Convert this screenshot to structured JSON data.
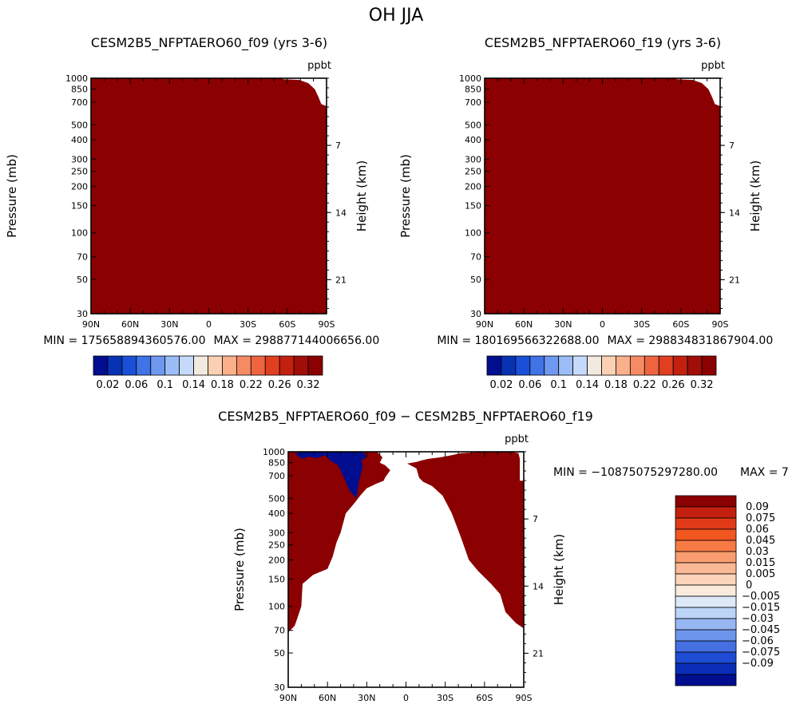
{
  "figure_title": "OH JJA",
  "colors": {
    "positive_fill": "#8b0000",
    "negative_fill": "#000e8f",
    "background": "#ffffff"
  },
  "chart_data": [
    {
      "type": "heatmap",
      "title": "CESM2B5_NFPTAERO60_f09 (yrs 3-6)",
      "units": "ppbt",
      "xlabel": "",
      "ylabel": "Pressure (mb)",
      "ylabel_right": "Height (km)",
      "x_ticks": [
        "90N",
        "60N",
        "30N",
        "0",
        "30S",
        "60S",
        "90S"
      ],
      "y_ticks": [
        "30",
        "50",
        "70",
        "100",
        "150",
        "200",
        "250",
        "300",
        "400",
        "500",
        "700",
        "850",
        "1000"
      ],
      "y_right_ticks": [
        "21",
        "14",
        "7"
      ],
      "min_text": "MIN = 175658894360576.00",
      "max_text": "MAX = 298877144006656.00",
      "colorbar_orientation": "horizontal",
      "colorbar_colors": [
        "#000e8f",
        "#0832b4",
        "#1a50d8",
        "#3f73e6",
        "#6f98f0",
        "#9bbcf7",
        "#c5dafb",
        "#f3eadf",
        "#fbd0b4",
        "#f9b08b",
        "#f58b63",
        "#ee6440",
        "#e04020",
        "#c42010",
        "#a10e08",
        "#8b0000"
      ],
      "colorbar_labels": [
        "0.02",
        "0.06",
        "0.1",
        "0.14",
        "0.18",
        "0.22",
        "0.26",
        "0.32"
      ],
      "field_note": "all values exceed top level; masked near surface 60S-90S"
    },
    {
      "type": "heatmap",
      "title": "CESM2B5_NFPTAERO60_f19 (yrs 3-6)",
      "units": "ppbt",
      "xlabel": "",
      "ylabel": "Pressure (mb)",
      "ylabel_right": "Height (km)",
      "x_ticks": [
        "90N",
        "60N",
        "30N",
        "0",
        "30S",
        "60S",
        "90S"
      ],
      "y_ticks": [
        "30",
        "50",
        "70",
        "100",
        "150",
        "200",
        "250",
        "300",
        "400",
        "500",
        "700",
        "850",
        "1000"
      ],
      "y_right_ticks": [
        "21",
        "14",
        "7"
      ],
      "min_text": "MIN = 180169566322688.00",
      "max_text": "MAX = 298834831867904.00",
      "colorbar_orientation": "horizontal",
      "colorbar_colors": [
        "#000e8f",
        "#0832b4",
        "#1a50d8",
        "#3f73e6",
        "#6f98f0",
        "#9bbcf7",
        "#c5dafb",
        "#f3eadf",
        "#fbd0b4",
        "#f9b08b",
        "#f58b63",
        "#ee6440",
        "#e04020",
        "#c42010",
        "#a10e08",
        "#8b0000"
      ],
      "colorbar_labels": [
        "0.02",
        "0.06",
        "0.1",
        "0.14",
        "0.18",
        "0.22",
        "0.26",
        "0.32"
      ],
      "field_note": "all values exceed top level; masked near surface 60S-90S"
    },
    {
      "type": "heatmap",
      "title": "CESM2B5_NFPTAERO60_f09 − CESM2B5_NFPTAERO60_f19",
      "units": "ppbt",
      "xlabel": "",
      "ylabel": "Pressure (mb)",
      "ylabel_right": "Height (km)",
      "x_ticks": [
        "90N",
        "60N",
        "30N",
        "0",
        "30S",
        "60S",
        "90S"
      ],
      "y_ticks": [
        "30",
        "50",
        "70",
        "100",
        "150",
        "200",
        "250",
        "300",
        "400",
        "500",
        "700",
        "850",
        "1000"
      ],
      "y_right_ticks": [
        "21",
        "14",
        "7"
      ],
      "min_text": "MIN = −10875075297280.00",
      "max_text": "MAX = 7",
      "colorbar_orientation": "vertical",
      "colorbar_colors": [
        "#8b0000",
        "#c42010",
        "#e03a18",
        "#f2561f",
        "#f77a45",
        "#f99c70",
        "#fab896",
        "#fbd4ba",
        "#f8ebdc",
        "#dde9f8",
        "#bcd4f7",
        "#97b7f3",
        "#6e95ec",
        "#4470e2",
        "#1e4cd4",
        "#0a2eb8",
        "#000e8f"
      ],
      "colorbar_labels": [
        "0.09",
        "0.075",
        "0.06",
        "0.045",
        "0.03",
        "0.015",
        "0.005",
        "0",
        "−0.005",
        "−0.015",
        "−0.03",
        "−0.045",
        "−0.06",
        "−0.075",
        "−0.09"
      ],
      "field_note": "positive (>0.09) over poles and lower troposphere; negative (<-0.09) near surface 30N-60N"
    }
  ]
}
